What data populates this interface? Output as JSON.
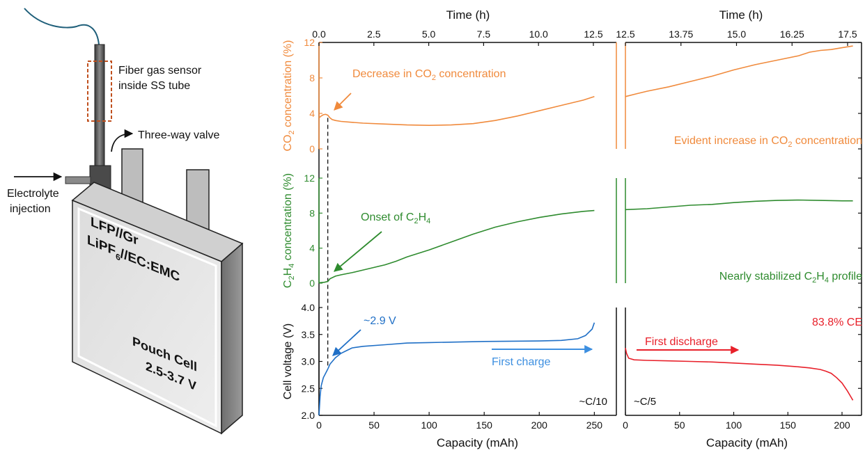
{
  "illustration": {
    "sensor_label_1": "Fiber gas sensor",
    "sensor_label_2": "inside SS tube",
    "valve_label": "Three-way valve",
    "injection_label_1": "Electrolyte",
    "injection_label_2": "injection",
    "cell_text_1": "LFP//Gr",
    "cell_text_2a": "LiPF",
    "cell_text_2sub": "6",
    "cell_text_2b": "//EC:EMC",
    "cell_text_3": "Pouch Cell",
    "cell_text_4": "2.5-3.7 V"
  },
  "colors": {
    "co2": "#f08a3c",
    "c2h4": "#2e8b2e",
    "charge": "#1f6fc6",
    "discharge": "#e8202a",
    "axis": "#111111",
    "sensor_box": "#c0501e"
  },
  "chart_data": {
    "type": "line",
    "top_axis": {
      "title": "Time (h)",
      "left_ticks": [
        "0.0",
        "2.5",
        "5.0",
        "7.5",
        "10.0",
        "12.5"
      ],
      "right_ticks": [
        "12.5",
        "13.75",
        "15.0",
        "16.25",
        "17.5"
      ]
    },
    "bottom_axis": {
      "title": "Capacity (mAh)",
      "left_ticks": [
        "0",
        "50",
        "100",
        "150",
        "200",
        "250"
      ],
      "right_ticks": [
        "0",
        "50",
        "100",
        "150",
        "200"
      ]
    },
    "panels": [
      {
        "id": "co2",
        "ylabel_prefix": "CO",
        "ylabel_sub": "2",
        "ylabel_suffix": " concentration (%)",
        "ylim": [
          0,
          12
        ],
        "yticks": [
          "0",
          "4",
          "8",
          "12"
        ],
        "annotation_left_main": "Decrease in CO",
        "annotation_left_sub": "2",
        "annotation_left_end": " concentration",
        "annotation_right_main": "Evident increase in CO",
        "annotation_right_sub": "2",
        "annotation_right_end": " concentration",
        "charge_series": {
          "x": [
            0,
            2,
            4,
            6,
            8,
            10,
            12,
            15,
            20,
            30,
            40,
            60,
            80,
            100,
            120,
            140,
            160,
            180,
            200,
            220,
            240,
            250
          ],
          "y": [
            3.5,
            3.7,
            3.85,
            3.9,
            3.8,
            3.5,
            3.3,
            3.2,
            3.1,
            3.0,
            2.9,
            2.8,
            2.7,
            2.65,
            2.7,
            2.85,
            3.2,
            3.7,
            4.3,
            4.9,
            5.5,
            5.9
          ]
        },
        "discharge_series": {
          "x": [
            0,
            10,
            20,
            40,
            60,
            80,
            100,
            120,
            140,
            160,
            170,
            180,
            190,
            200,
            210
          ],
          "y": [
            5.9,
            6.2,
            6.5,
            7.0,
            7.6,
            8.2,
            8.9,
            9.5,
            10.0,
            10.5,
            10.9,
            11.1,
            11.2,
            11.4,
            11.6
          ]
        }
      },
      {
        "id": "c2h4",
        "ylabel_prefix": "C",
        "ylabel_sub1": "2",
        "ylabel_mid": "H",
        "ylabel_sub2": "4",
        "ylabel_suffix": " concentration (%)",
        "ylim": [
          0,
          12
        ],
        "yticks": [
          "0",
          "4",
          "8",
          "12"
        ],
        "annotation_left_main": "Onset of C",
        "annotation_left_sub1": "2",
        "annotation_left_mid": "H",
        "annotation_left_sub2": "4",
        "annotation_right_main": "Nearly stabilized C",
        "annotation_right_sub1": "2",
        "annotation_right_mid": "H",
        "annotation_right_sub2": "4",
        "annotation_right_end": " profile",
        "charge_series": {
          "x": [
            0,
            5,
            8,
            10,
            15,
            20,
            30,
            40,
            50,
            60,
            70,
            80,
            100,
            120,
            140,
            160,
            180,
            200,
            220,
            240,
            250
          ],
          "y": [
            0.05,
            0.1,
            0.2,
            0.5,
            0.8,
            0.95,
            1.2,
            1.5,
            1.8,
            2.1,
            2.5,
            3.0,
            3.8,
            4.7,
            5.6,
            6.4,
            7.0,
            7.5,
            7.9,
            8.2,
            8.3
          ]
        },
        "discharge_series": {
          "x": [
            0,
            20,
            40,
            60,
            80,
            100,
            120,
            140,
            160,
            180,
            200,
            210
          ],
          "y": [
            8.4,
            8.5,
            8.7,
            8.9,
            9.0,
            9.2,
            9.35,
            9.45,
            9.5,
            9.45,
            9.4,
            9.4
          ]
        }
      },
      {
        "id": "voltage",
        "ylabel": "Cell voltage (V)",
        "ylim": [
          2.0,
          4.0
        ],
        "yticks": [
          "2.0",
          "2.5",
          "3.0",
          "3.5",
          "4.0"
        ],
        "annotation_point": "~2.9 V",
        "annotation_ce": "83.8% CE",
        "label_charge": "First charge",
        "label_discharge": "First discharge",
        "rate_left": "~C/10",
        "rate_right": "~C/5",
        "charge_series": {
          "x": [
            0,
            1,
            2,
            4,
            6,
            8,
            10,
            15,
            20,
            25,
            30,
            40,
            60,
            80,
            100,
            150,
            200,
            220,
            235,
            242,
            248,
            250
          ],
          "y": [
            2.0,
            2.35,
            2.55,
            2.7,
            2.78,
            2.86,
            2.95,
            3.07,
            3.15,
            3.2,
            3.25,
            3.28,
            3.31,
            3.34,
            3.35,
            3.37,
            3.38,
            3.39,
            3.42,
            3.48,
            3.6,
            3.72
          ]
        },
        "discharge_series": {
          "x": [
            0,
            1,
            3,
            8,
            20,
            40,
            60,
            80,
            100,
            120,
            140,
            160,
            170,
            180,
            185,
            190,
            195,
            200,
            205,
            208,
            210
          ],
          "y": [
            3.25,
            3.15,
            3.06,
            3.03,
            3.02,
            3.01,
            3.0,
            2.99,
            2.97,
            2.95,
            2.93,
            2.9,
            2.88,
            2.85,
            2.82,
            2.78,
            2.7,
            2.6,
            2.45,
            2.35,
            2.28
          ]
        }
      }
    ],
    "onset_marker_capacity": 8
  }
}
